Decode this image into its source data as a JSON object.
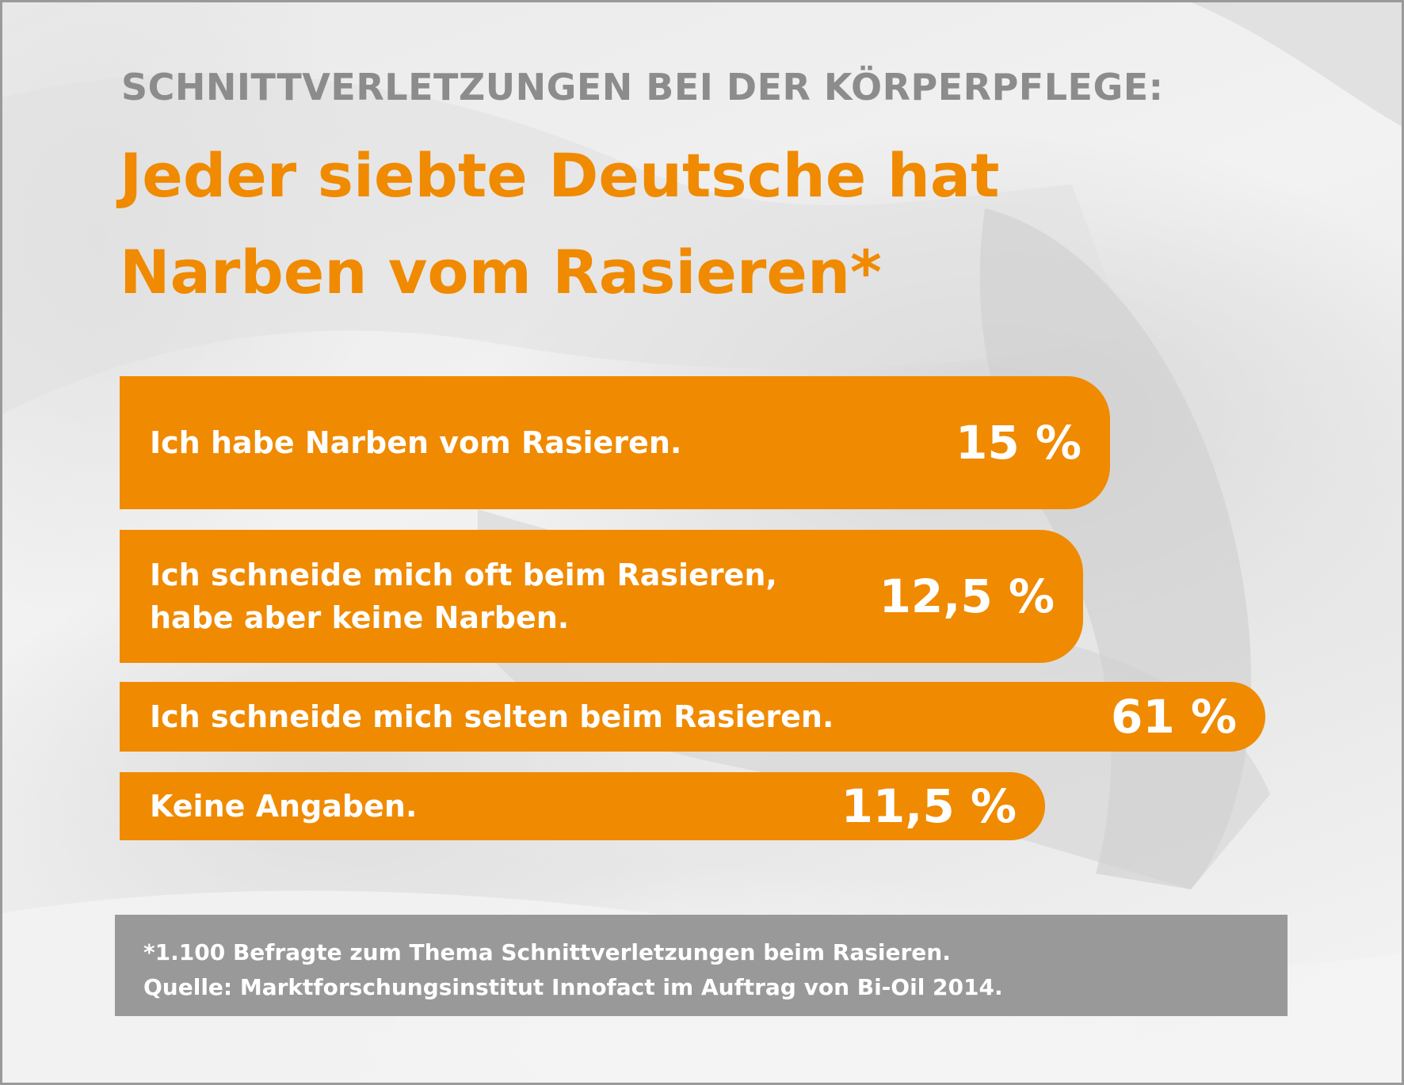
{
  "header": {
    "kicker": "SCHNITTVERLETZUNGEN BEI DER KÖRPERPFLEGE:",
    "headline_line1": "Jeder siebte Deutsche hat",
    "headline_line2": "Narben vom Rasieren*"
  },
  "chart_data": {
    "type": "bar",
    "orientation": "horizontal",
    "categories": [
      "Ich habe Narben vom Rasieren.",
      "Ich schneide mich oft beim Rasieren, habe aber keine Narben.",
      "Ich schneide mich selten beim Rasieren.",
      "Keine Angaben."
    ],
    "values": [
      15,
      12.5,
      61,
      11.5
    ],
    "value_labels": [
      "15 %",
      "12,5 %",
      "61 %",
      "11,5 %"
    ],
    "bars": [
      {
        "label_lines": [
          "Ich habe Narben vom Rasieren."
        ],
        "value_label": "15 %"
      },
      {
        "label_lines": [
          "Ich schneide mich oft beim Rasieren,",
          "habe aber keine Narben."
        ],
        "value_label": "12,5 %"
      },
      {
        "label_lines": [
          "Ich schneide mich selten beim Rasieren."
        ],
        "value_label": "61 %"
      },
      {
        "label_lines": [
          "Keine Angaben."
        ],
        "value_label": "11,5 %"
      }
    ],
    "unit": "%",
    "bar_color": "#f08a00"
  },
  "footnote": {
    "line1": "*1.100 Befragte zum Thema Schnittverletzungen beim Rasieren.",
    "line2": "Quelle: Marktforschungsinstitut Innofact im Auftrag von Bi-Oil 2014."
  },
  "colors": {
    "accent": "#f08a00",
    "kicker": "#8c8c8c",
    "footnote_bg": "#999999",
    "text_on_accent": "#ffffff"
  }
}
